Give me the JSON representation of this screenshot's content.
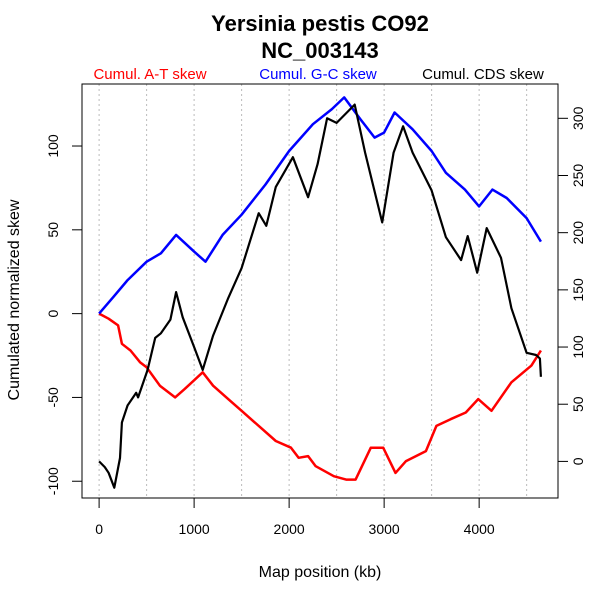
{
  "chart_data": {
    "type": "line",
    "title": "Yersinia pestis CO92",
    "subtitle": "NC_003143",
    "xlabel": "Map position (kb)",
    "ylabel": "Cumulated normalized skew",
    "xlim": [
      -180,
      4830
    ],
    "ylim": [
      -110,
      137
    ],
    "y2lim": [
      -32,
      330
    ],
    "x_ticks": [
      0,
      1000,
      2000,
      3000,
      4000
    ],
    "x_tick_labels": [
      "0",
      "1000",
      "2000",
      "3000",
      "4000"
    ],
    "x_grid": [
      0,
      500,
      1000,
      1500,
      2000,
      2500,
      3000,
      3500,
      4000,
      4500
    ],
    "y_ticks": [
      -100,
      -50,
      0,
      50,
      100
    ],
    "y_tick_labels": [
      "-100",
      "-50",
      "0",
      "50",
      "100"
    ],
    "y2_ticks": [
      0,
      50,
      100,
      150,
      200,
      250,
      300
    ],
    "y2_tick_labels": [
      "0",
      "50",
      "100",
      "150",
      "200",
      "250",
      "300"
    ],
    "grid": "vertical dotted",
    "legend_placement": "top",
    "series": [
      {
        "name": "Cumul. A-T skew",
        "color": "#ff0000",
        "axis": "left",
        "x": [
          0,
          100,
          200,
          240,
          330,
          430,
          500,
          640,
          800,
          900,
          1090,
          1200,
          1380,
          1500,
          1700,
          1860,
          2020,
          2100,
          2200,
          2280,
          2470,
          2600,
          2700,
          2860,
          2990,
          3120,
          3230,
          3440,
          3550,
          3700,
          3860,
          3990,
          4130,
          4340,
          4550,
          4650
        ],
        "values": [
          0,
          -3,
          -7,
          -18,
          -22,
          -29,
          -32,
          -43,
          -50,
          -45,
          -35,
          -43,
          -52,
          -58,
          -68,
          -76,
          -80,
          -86,
          -85,
          -91,
          -97,
          -99,
          -99,
          -80,
          -80,
          -95,
          -88,
          -82,
          -67,
          -63,
          -59,
          -51,
          -58,
          -41,
          -31,
          -22
        ]
      },
      {
        "name": "Cumul. G-C skew",
        "color": "#0000ff",
        "axis": "left",
        "x": [
          0,
          150,
          300,
          500,
          650,
          810,
          1000,
          1120,
          1300,
          1500,
          1750,
          2000,
          2250,
          2450,
          2580,
          2750,
          2900,
          3000,
          3110,
          3300,
          3500,
          3650,
          3850,
          4000,
          4140,
          4290,
          4500,
          4650
        ],
        "values": [
          0,
          10,
          20,
          31,
          36,
          47,
          37,
          31,
          47,
          59,
          77,
          97,
          113,
          122,
          129,
          116,
          105,
          108,
          120,
          110,
          97,
          84,
          74,
          64,
          74,
          69,
          57,
          43
        ]
      },
      {
        "name": "Cumul. CDS skew",
        "color": "#000000",
        "axis": "right",
        "x": [
          0,
          60,
          100,
          160,
          220,
          240,
          300,
          390,
          410,
          510,
          590,
          650,
          750,
          810,
          880,
          1000,
          1090,
          1200,
          1360,
          1500,
          1680,
          1760,
          1860,
          2040,
          2200,
          2300,
          2400,
          2500,
          2690,
          2800,
          2980,
          3100,
          3200,
          3300,
          3500,
          3650,
          3810,
          3880,
          3980,
          4080,
          4230,
          4340,
          4500,
          4600,
          4640,
          4650
        ],
        "values": [
          0,
          -5,
          -10,
          -23,
          3,
          34,
          49,
          60,
          56,
          80,
          108,
          112,
          124,
          148,
          126,
          100,
          80,
          110,
          143,
          169,
          217,
          206,
          240,
          266,
          231,
          260,
          300,
          296,
          312,
          270,
          209,
          270,
          293,
          270,
          237,
          196,
          176,
          197,
          165,
          204,
          178,
          134,
          95,
          93,
          90,
          74
        ]
      }
    ]
  }
}
